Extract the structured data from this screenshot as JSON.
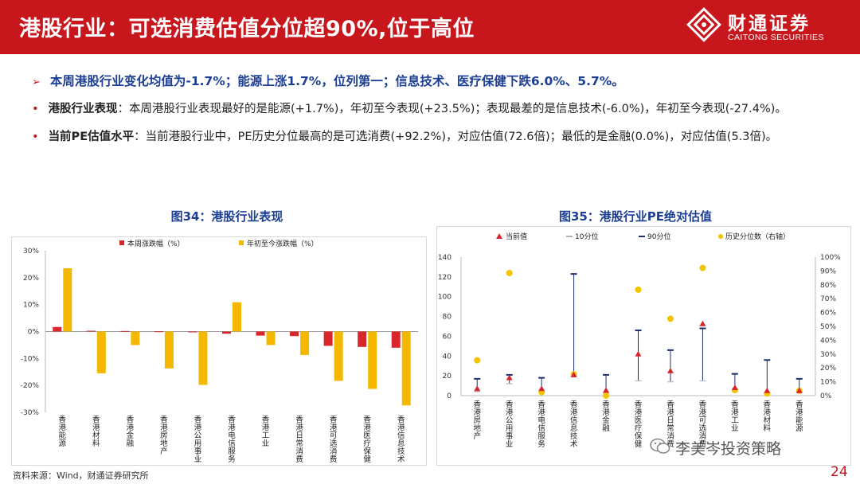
{
  "header": {
    "title": "港股行业：可选消费估值分位超90%,位于高位",
    "brand_cn": "财通证券",
    "brand_en": "CAITONG SECURITIES",
    "color": "#c8161d"
  },
  "summary": {
    "headline_marker": "➢",
    "headline": "本周港股行业变化均值为-1.7%；能源上涨1.7%，位列第一；信息技术、医疗保健下跌6.0%、5.7%。",
    "bullet_marker": "•",
    "b1_label": "港股行业表现",
    "b1_text": "：本周港股行业表现最好的是能源(+1.7%)，年初至今表现(+23.5%)；表现最差的是信息技术(-6.0%)，年初至今表现(-27.4%)。",
    "b2_label": "当前PE估值水平",
    "b2_text": "：当前港股行业中，PE历史分位最高的是可选消费(+92.2%)，对应估值(72.6倍)；最低的是金融(0.0%)，对应估值(5.3倍)。"
  },
  "chart_data": [
    {
      "type": "bar",
      "title": "图34：港股行业表现",
      "categories": [
        "香港能源",
        "香港材料",
        "香港金融",
        "香港房地产",
        "香港公用事业",
        "香港电信服务",
        "香港工业",
        "香港日常消费",
        "香港可选消费",
        "香港医疗保健",
        "香港信息技术"
      ],
      "series": [
        {
          "name": "本周涨跌幅（%）",
          "color": "#d9262c",
          "values": [
            1.7,
            0.3,
            0.2,
            0.1,
            -0.3,
            -0.8,
            -1.5,
            -1.7,
            -5.3,
            -5.7,
            -6.0
          ]
        },
        {
          "name": "年初至今涨跌幅（%）",
          "color": "#f5b800",
          "values": [
            23.5,
            -15.5,
            -5.0,
            -13.7,
            -19.8,
            10.9,
            -5.0,
            -8.7,
            -18.3,
            -21.3,
            -27.4
          ]
        }
      ],
      "ylim": [
        -30,
        30
      ],
      "yticks": [
        "30%",
        "20%",
        "10%",
        "0%",
        "-10%",
        "-20%",
        "-30%"
      ],
      "legend": "top"
    },
    {
      "type": "scatter",
      "title": "图35：港股行业PE绝对估值",
      "categories": [
        "香港房地产",
        "香港公用事业",
        "香港电信服务",
        "香港信息技术",
        "香港金融",
        "香港医疗保健",
        "香港日常消费",
        "香港可选消费",
        "香港工业",
        "香港材料",
        "香港能源"
      ],
      "series": [
        {
          "name": "当前值",
          "color": "#d9262c",
          "values": [
            7,
            18,
            7,
            21,
            5.3,
            42,
            25,
            72.6,
            8,
            5,
            5
          ]
        },
        {
          "name": "10分位",
          "color": "#c0c0d0",
          "values": [
            4,
            12,
            4,
            19,
            3,
            15,
            14,
            15,
            4,
            3,
            3
          ]
        },
        {
          "name": "90分位",
          "color": "#1c2f6b",
          "values": [
            17,
            21,
            18,
            123,
            21,
            66,
            46,
            68,
            22,
            36,
            17
          ]
        },
        {
          "name": "历史分位数（右轴）",
          "color": "#f5c400",
          "values": [
            0.255,
            0.885,
            0.025,
            0.155,
            0.0,
            0.765,
            0.555,
            0.922,
            0.04,
            0.015,
            0.035
          ]
        }
      ],
      "ylim": [
        0,
        140
      ],
      "y2lim": [
        0,
        1
      ],
      "yticks": [
        "140",
        "120",
        "100",
        "80",
        "60",
        "40",
        "20",
        "0"
      ],
      "y2ticks": [
        "100%",
        "90%",
        "80%",
        "70%",
        "60%",
        "50%",
        "40%",
        "30%",
        "20%",
        "10%",
        "0%"
      ],
      "legend": "top"
    }
  ],
  "footer": {
    "source": "资料来源：Wind，财通证券研究所"
  },
  "watermark": {
    "text": "李美岑投资策略"
  },
  "page": {
    "number": "24"
  }
}
